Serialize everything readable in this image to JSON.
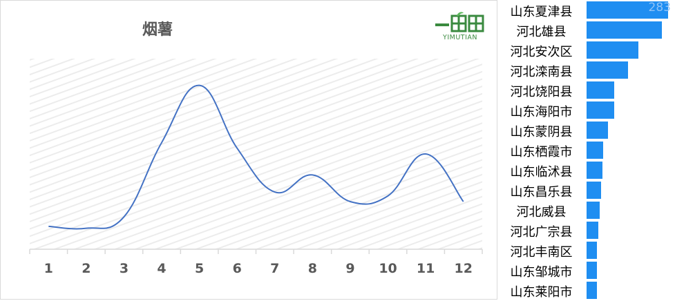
{
  "chart_data": [
    {
      "type": "line",
      "title": "烟薯",
      "categories": [
        "1",
        "2",
        "3",
        "4",
        "5",
        "6",
        "7",
        "8",
        "9",
        "10",
        "11",
        "12"
      ],
      "series": [
        {
          "values": [
            12,
            11,
            17,
            56,
            86,
            53,
            30,
            39,
            25,
            28,
            50,
            25
          ]
        }
      ],
      "ylim": [
        0,
        100
      ],
      "grid": true,
      "color": "#4472c4"
    },
    {
      "type": "bar",
      "orientation": "horizontal",
      "categories": [
        "山东夏津县",
        "河北雄县",
        "河北安次区",
        "河北滦南县",
        "河北饶阳县",
        "山东海阳市",
        "山东蒙阴县",
        "山东栖霞市",
        "山东临沭县",
        "山东昌乐县",
        "河北威县",
        "河北广宗县",
        "河北丰南区",
        "山东邹城市",
        "山东莱阳市"
      ],
      "values": [
        283,
        262,
        180,
        145,
        95,
        95,
        75,
        57,
        55,
        50,
        46,
        40,
        37,
        37,
        36
      ],
      "value_labels": [
        "283"
      ],
      "color": "#1f8ef1"
    }
  ],
  "logo": {
    "text": "YIMUTIAN"
  }
}
